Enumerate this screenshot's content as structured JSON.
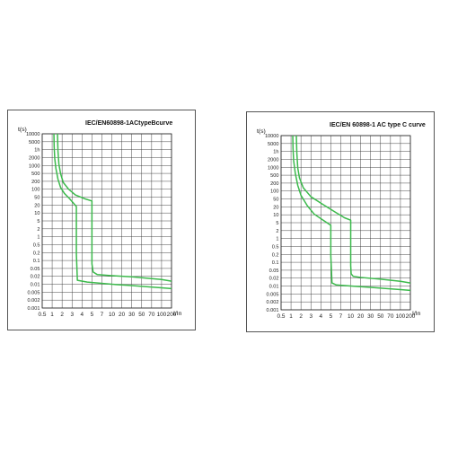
{
  "chart_data": [
    {
      "type": "line",
      "title": "IEC/EN60898-1ACtypeBcurve",
      "ylabel": "t(s)",
      "xlabel": "I/In",
      "xscale": "log",
      "yscale": "log",
      "grid": true,
      "xlim": [
        0.5,
        200
      ],
      "ylim": [
        0.001,
        10000
      ],
      "x_ticks": [
        "0.5",
        "1",
        "2",
        "3",
        "4",
        "5",
        "7",
        "10",
        "20",
        "30",
        "50",
        "70",
        "100",
        "200"
      ],
      "y_ticks": [
        "10000",
        "5000",
        "1h",
        "2000",
        "1000",
        "500",
        "200",
        "100",
        "50",
        "20",
        "10",
        "5",
        "2",
        "1",
        "0.5",
        "0.2",
        "0.1",
        "0.05",
        "0.02",
        "0.01",
        "0.005",
        "0.002",
        "0.001"
      ],
      "series": [
        {
          "x": [
            1.13,
            1.15,
            1.2,
            1.3,
            1.5,
            1.8,
            2.2,
            2.7,
            3.2,
            3.4,
            3.4,
            3.5,
            4.5,
            10,
            30,
            100,
            200
          ],
          "y": [
            10000,
            3000,
            1000,
            400,
            150,
            70,
            40,
            25,
            15,
            12,
            0.15,
            0.013,
            0.011,
            0.009,
            0.008,
            0.0065,
            0.006
          ]
        },
        {
          "x": [
            1.45,
            1.5,
            1.6,
            1.8,
            2.1,
            2.6,
            3.3,
            4.2,
            5,
            5,
            5.2,
            6,
            10,
            30,
            100,
            200
          ],
          "y": [
            10000,
            2000,
            600,
            250,
            110,
            60,
            35,
            25,
            20,
            0.06,
            0.028,
            0.022,
            0.02,
            0.018,
            0.014,
            0.012
          ]
        }
      ]
    },
    {
      "type": "line",
      "title": "IEC/EN 60898-1 AC type C curve",
      "ylabel": "t(s)",
      "xlabel": "I/In",
      "xscale": "log",
      "yscale": "log",
      "grid": true,
      "xlim": [
        0.5,
        200
      ],
      "ylim": [
        0.001,
        10000
      ],
      "x_ticks": [
        "0.5",
        "1",
        "2",
        "3",
        "4",
        "5",
        "7",
        "10",
        "20",
        "30",
        "50",
        "70",
        "100",
        "200"
      ],
      "y_ticks": [
        "10000",
        "5000",
        "1h",
        "2000",
        "1000",
        "500",
        "200",
        "100",
        "50",
        "20",
        "10",
        "5",
        "2",
        "1",
        "0.5",
        "0.2",
        "0.1",
        "0.05",
        "0.02",
        "0.01",
        "0.005",
        "0.002",
        "0.001"
      ],
      "series": [
        {
          "x": [
            1.13,
            1.15,
            1.2,
            1.35,
            1.6,
            2,
            2.6,
            3.3,
            4.2,
            5,
            5,
            5.2,
            6,
            10,
            30,
            100,
            200
          ],
          "y": [
            10000,
            3000,
            1000,
            300,
            100,
            40,
            15,
            7,
            4,
            2.5,
            0.15,
            0.012,
            0.01,
            0.009,
            0.008,
            0.0065,
            0.006
          ]
        },
        {
          "x": [
            1.45,
            1.5,
            1.6,
            1.8,
            2.2,
            3,
            4.2,
            6,
            8,
            10,
            10,
            10.3,
            12,
            20,
            50,
            100,
            200
          ],
          "y": [
            10000,
            2000,
            500,
            200,
            80,
            35,
            17,
            8,
            5,
            4,
            0.06,
            0.028,
            0.022,
            0.02,
            0.017,
            0.014,
            0.012
          ]
        }
      ],
      "colors": {
        "curve": "#3cba4c"
      }
    }
  ]
}
